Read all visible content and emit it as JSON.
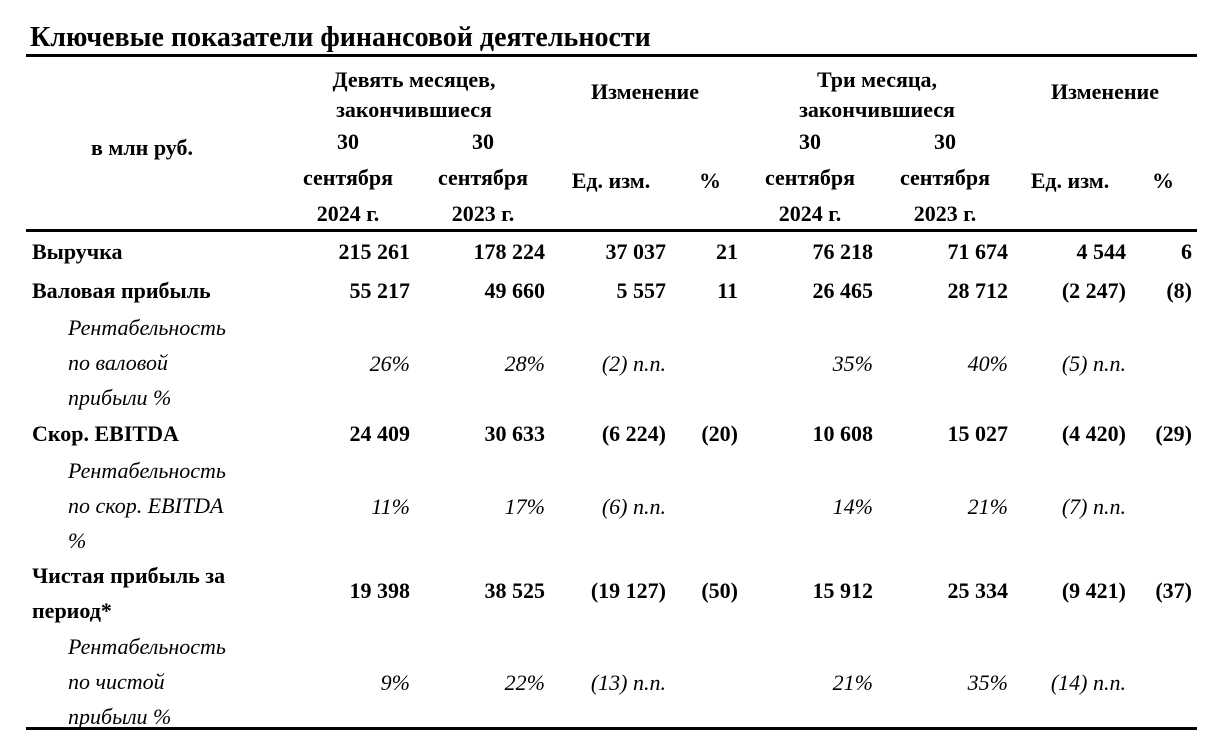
{
  "title": "Ключевые показатели финансовой деятельности",
  "header": {
    "unit": "в млн руб.",
    "nine_months": [
      "Девять месяцев,",
      "закончившиеся"
    ],
    "three_months": [
      "Три месяца,",
      "закончившиеся"
    ],
    "change": "Изменение",
    "date_2024": [
      "30",
      "сентября",
      "2024 г."
    ],
    "date_2023": [
      "30",
      "сентября",
      "2023 г."
    ],
    "unit_change": "Ед. изм.",
    "percent": "%"
  },
  "rows": [
    {
      "label": [
        "Выручка"
      ],
      "values": [
        "215 261",
        "178 224",
        "37 037",
        "21",
        "76 218",
        "71 674",
        "4 544",
        "6"
      ]
    },
    {
      "label": [
        "Валовая прибыль"
      ],
      "values": [
        "55 217",
        "49 660",
        "5 557",
        "11",
        "26 465",
        "28 712",
        "(2 247)",
        "(8)"
      ]
    },
    {
      "label": [
        "Рентабельность",
        "по валовой",
        "прибыли %"
      ],
      "values": [
        "26%",
        "28%",
        "(2) п.п.",
        "",
        "35%",
        "40%",
        "(5) п.п.",
        ""
      ]
    },
    {
      "label": [
        "Скор. EBITDA"
      ],
      "values": [
        "24 409",
        "30 633",
        "(6 224)",
        "(20)",
        "10 608",
        "15 027",
        "(4 420)",
        "(29)"
      ]
    },
    {
      "label": [
        "Рентабельность",
        "по скор. EBITDA",
        "%"
      ],
      "values": [
        "11%",
        "17%",
        "(6) п.п.",
        "",
        "14%",
        "21%",
        "(7) п.п.",
        ""
      ]
    },
    {
      "label": [
        "Чистая прибыль за",
        "период*"
      ],
      "values": [
        "19 398",
        "38 525",
        "(19 127)",
        "(50)",
        "15 912",
        "25 334",
        "(9 421)",
        "(37)"
      ]
    },
    {
      "label": [
        "Рентабельность",
        "по чистой",
        "прибыли %"
      ],
      "values": [
        "9%",
        "22%",
        "(13) п.п.",
        "",
        "21%",
        "35%",
        "(14) п.п.",
        ""
      ]
    }
  ]
}
